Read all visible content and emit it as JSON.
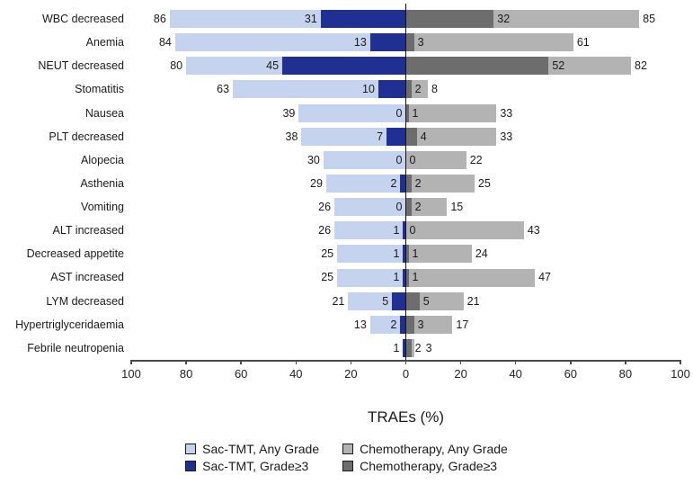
{
  "chart_data": {
    "type": "bar",
    "variant": "diverging-tornado-horizontal",
    "xlabel": "TRAEs (%)",
    "xlim": [
      -100,
      100
    ],
    "tick_step": 20,
    "tick_labels": [
      "100",
      "80",
      "60",
      "40",
      "20",
      "0",
      "20",
      "40",
      "60",
      "80",
      "100"
    ],
    "grid": false,
    "legend_position": "bottom",
    "categories": [
      "WBC decreased",
      "Anemia",
      "NEUT decreased",
      "Stomatitis",
      "Nausea",
      "PLT decreased",
      "Alopecia",
      "Asthenia",
      "Vomiting",
      "ALT increased",
      "Decreased appetite",
      "AST increased",
      "LYM decreased",
      "Hypertriglyceridaemia",
      "Febrile neutropenia"
    ],
    "series": [
      {
        "id": "sac_any",
        "name": "Sac-TMT, Any Grade",
        "side": "left",
        "layer": "base",
        "color": "#c6d3ee",
        "values": [
          86,
          84,
          80,
          63,
          39,
          38,
          30,
          29,
          26,
          26,
          25,
          25,
          21,
          13,
          1
        ],
        "labels": [
          "86",
          "84",
          "80",
          "63",
          "39",
          "38",
          "30",
          "29",
          "26",
          "26",
          "25",
          "25",
          "21",
          "13",
          "1"
        ]
      },
      {
        "id": "sac_g3",
        "name": "Sac-TMT, Grade≥3",
        "side": "left",
        "layer": "overlay",
        "color": "#202f92",
        "values": [
          31,
          13,
          45,
          10,
          0,
          7,
          0,
          2,
          0,
          1,
          1,
          1,
          5,
          2,
          1
        ],
        "labels": [
          "31",
          "13",
          "45",
          "10",
          "0",
          "7",
          "0",
          "2",
          "0",
          "1",
          "1",
          "1",
          "5",
          "2",
          ""
        ]
      },
      {
        "id": "chemo_any",
        "name": "Chemotherapy, Any Grade",
        "side": "right",
        "layer": "base",
        "color": "#b3b3b3",
        "values": [
          85,
          61,
          82,
          8,
          33,
          33,
          22,
          25,
          15,
          43,
          24,
          47,
          21,
          17,
          3
        ],
        "labels": [
          "85",
          "61",
          "82",
          "8",
          "33",
          "33",
          "22",
          "25",
          "15",
          "43",
          "24",
          "47",
          "21",
          "17",
          "3"
        ]
      },
      {
        "id": "chemo_g3",
        "name": "Chemotherapy, Grade≥3",
        "side": "right",
        "layer": "overlay",
        "color": "#6d6d6d",
        "values": [
          32,
          3,
          52,
          2,
          1,
          4,
          0,
          2,
          2,
          0,
          1,
          1,
          5,
          3,
          2
        ],
        "labels": [
          "32",
          "3",
          "52",
          "2",
          "1",
          "4",
          "0",
          "2",
          "2",
          "0",
          "1",
          "1",
          "5",
          "3",
          "2"
        ]
      }
    ],
    "legend_order": [
      "sac_any",
      "chemo_any",
      "sac_g3",
      "chemo_g3"
    ]
  },
  "colors": {
    "sac_any_grade": "#c6d3ee",
    "sac_grade3": "#202f92",
    "chemo_any_grade": "#b3b3b3",
    "chemo_grade3": "#6d6d6d",
    "axis": "#4a4a4a",
    "zero_line": "#111111",
    "text": "#1a1a1a",
    "background": "#ffffff"
  }
}
